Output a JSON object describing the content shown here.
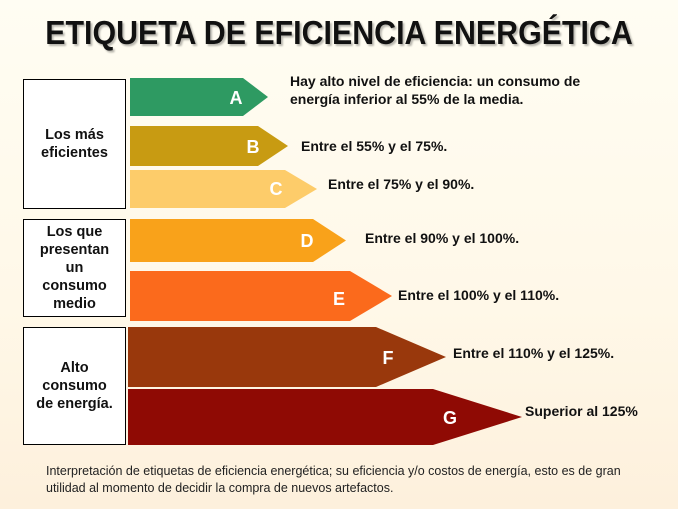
{
  "title": "ETIQUETA DE EFICIENCIA ENERGÉTICA",
  "groups": [
    {
      "label": "Los más\neficientes"
    },
    {
      "label": "Los que\npresentan\nun\nconsumo\nmedio"
    },
    {
      "label": "Alto\nconsumo\nde energía."
    }
  ],
  "classes": [
    {
      "letter": "A",
      "color": "#2e9a62",
      "description": "Hay alto nivel de eficiencia: un consumo de\nenergía inferior al 55% de la media."
    },
    {
      "letter": "B",
      "color": "#c89b12",
      "description": "Entre el 55% y el 75%."
    },
    {
      "letter": "C",
      "color": "#fdcc6a",
      "description": "Entre el 75% y el 90%."
    },
    {
      "letter": "D",
      "color": "#f9a21a",
      "description": "Entre el 90% y el 100%."
    },
    {
      "letter": "E",
      "color": "#fb6a1c",
      "description": "Entre el 100% y el 110%."
    },
    {
      "letter": "F",
      "color": "#99380c",
      "description": "Entre el 110% y el 125%."
    },
    {
      "letter": "G",
      "color": "#8f0a04",
      "description": "Superior al 125%"
    }
  ],
  "caption": "Interpretación de etiquetas de eficiencia energética; su eficiencia y/o costos de energía, esto es de gran utilidad al momento de decidir la compra de nuevos artefactos."
}
